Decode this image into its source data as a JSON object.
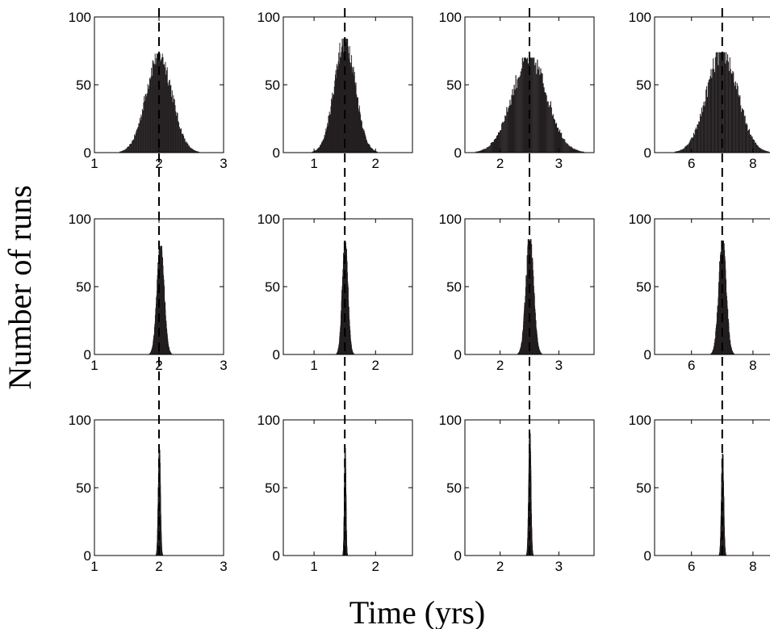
{
  "figure": {
    "xlabel": "Time (yrs)",
    "ylabel": "Number of runs"
  },
  "chart_data": {
    "type": "histogram",
    "layout": {
      "rows": 3,
      "cols": 4
    },
    "xlabel": "Time (yrs)",
    "ylabel": "Number of runs",
    "ylim": [
      0,
      100
    ],
    "yticks": [
      0,
      50,
      100
    ],
    "grid": false,
    "bar_color": "#231f20",
    "reference_line_color": "#000000",
    "columns": [
      {
        "xlim": [
          1,
          3
        ],
        "xticks": [
          1,
          2,
          3
        ],
        "reference": 2.0
      },
      {
        "xlim": [
          0.5,
          2.6
        ],
        "xticks": [
          1,
          2
        ],
        "reference": 1.5
      },
      {
        "xlim": [
          1.4,
          3.6
        ],
        "xticks": [
          2,
          3
        ],
        "reference": 2.5
      },
      {
        "xlim": [
          4.8,
          9.0
        ],
        "xticks": [
          6,
          8
        ],
        "reference": 7.0
      }
    ],
    "panels": [
      {
        "row": 0,
        "col": 0,
        "center": 2.0,
        "std": 0.2,
        "peak": 73
      },
      {
        "row": 0,
        "col": 1,
        "center": 1.5,
        "std": 0.17,
        "peak": 84
      },
      {
        "row": 0,
        "col": 2,
        "center": 2.5,
        "std": 0.3,
        "peak": 70
      },
      {
        "row": 0,
        "col": 3,
        "center": 7.0,
        "std": 0.5,
        "peak": 74
      },
      {
        "row": 1,
        "col": 0,
        "center": 2.02,
        "std": 0.055,
        "peak": 80
      },
      {
        "row": 1,
        "col": 1,
        "center": 1.5,
        "std": 0.045,
        "peak": 83
      },
      {
        "row": 1,
        "col": 2,
        "center": 2.5,
        "std": 0.065,
        "peak": 85
      },
      {
        "row": 1,
        "col": 3,
        "center": 7.0,
        "std": 0.12,
        "peak": 84
      },
      {
        "row": 2,
        "col": 0,
        "center": 2.0,
        "std": 0.016,
        "peak": 78
      },
      {
        "row": 2,
        "col": 1,
        "center": 1.5,
        "std": 0.012,
        "peak": 79
      },
      {
        "row": 2,
        "col": 2,
        "center": 2.5,
        "std": 0.018,
        "peak": 90
      },
      {
        "row": 2,
        "col": 3,
        "center": 7.0,
        "std": 0.035,
        "peak": 75
      }
    ]
  }
}
